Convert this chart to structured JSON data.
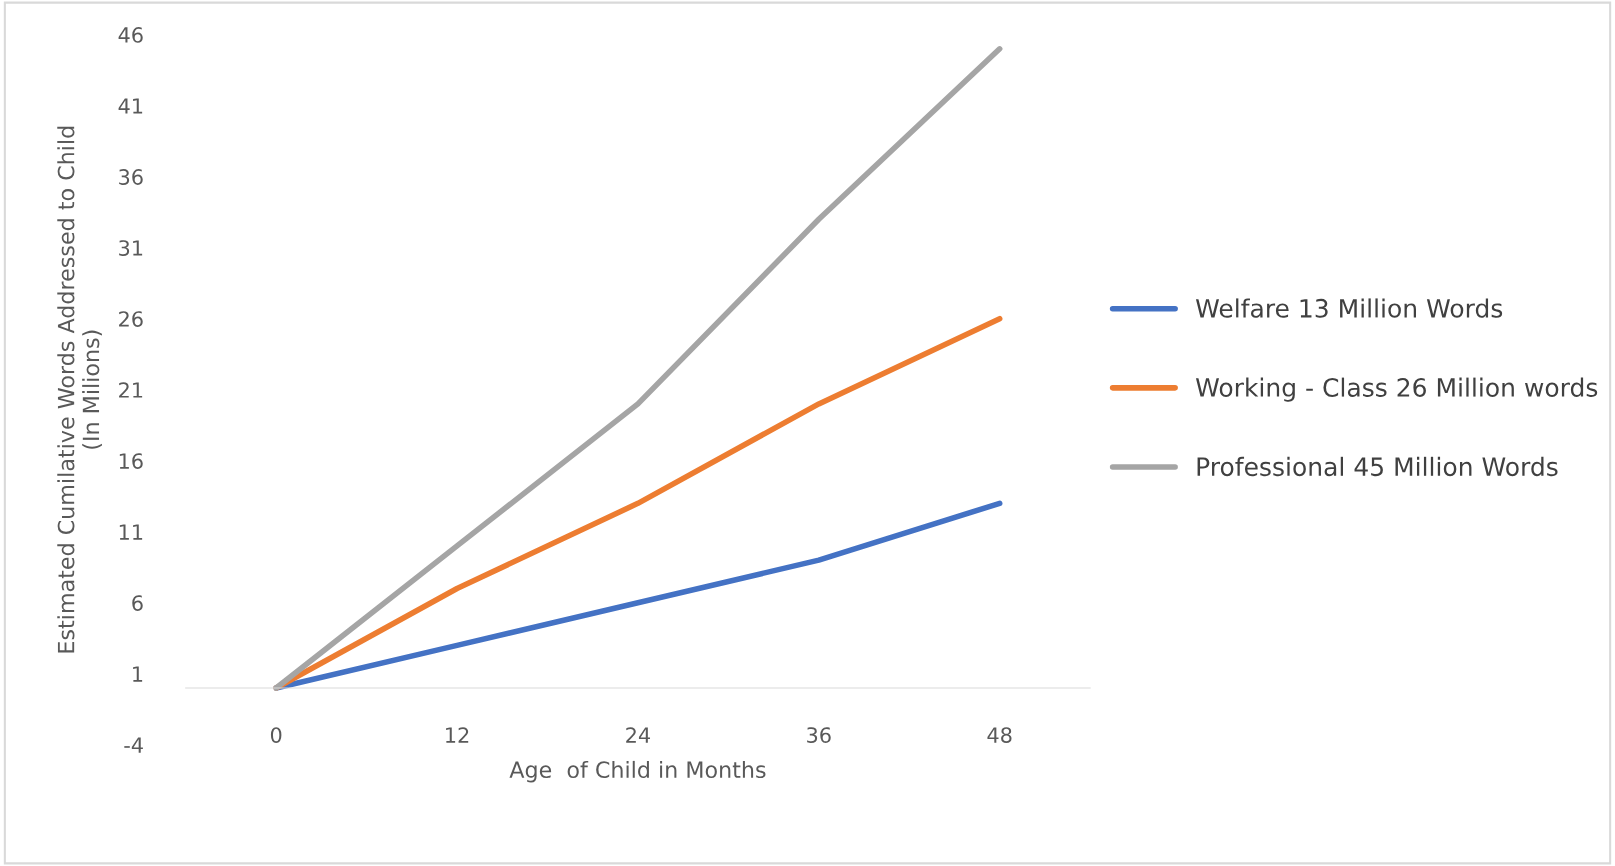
{
  "chart_data": {
    "type": "line",
    "xlabel": "Age  of Child in Months",
    "ylabel": "Estimated Cumilative Words Addressed to Child\n(In Milions)",
    "categories": [
      "0",
      "12",
      "24",
      "36",
      "48"
    ],
    "series": [
      {
        "name": "Welfare 13 Million Words",
        "color": "#4472c4",
        "values": [
          0,
          3,
          6,
          9,
          13
        ]
      },
      {
        "name": "Working - Class 26 Million words",
        "color": "#ed7d31",
        "values": [
          0,
          7,
          13,
          20,
          26
        ]
      },
      {
        "name": "Professional 45 Million Words",
        "color": "#a5a5a5",
        "values": [
          0,
          10,
          20,
          33,
          45
        ]
      }
    ],
    "ylim": [
      -4,
      46
    ],
    "yticks": [
      -4,
      1,
      6,
      11,
      16,
      21,
      26,
      31,
      36,
      41,
      46
    ],
    "grid": false,
    "legend": "right",
    "marker": "none",
    "line_style": "solid"
  }
}
